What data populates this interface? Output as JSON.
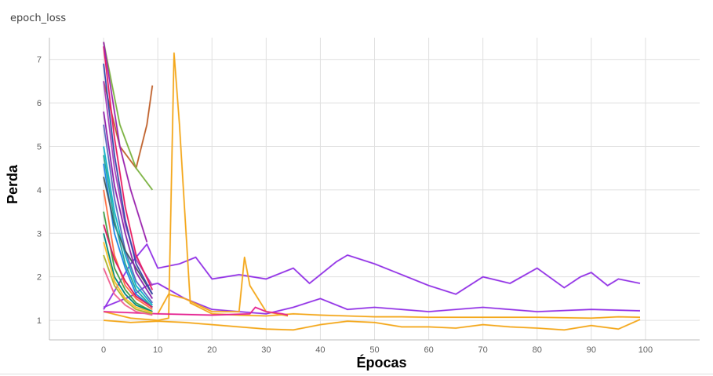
{
  "card": {
    "title": "epoch_loss"
  },
  "chart_data": {
    "type": "line",
    "xlabel": "Épocas",
    "ylabel": "Perda",
    "xlim": [
      -10,
      110
    ],
    "ylim": [
      0.55,
      7.5
    ],
    "x_ticks": [
      0,
      10,
      20,
      30,
      40,
      50,
      60,
      70,
      80,
      90,
      100
    ],
    "y_ticks": [
      1,
      2,
      3,
      4,
      5,
      6,
      7
    ],
    "grid": true,
    "series": [
      {
        "color": "#9334e6",
        "x": [
          0,
          5,
          8,
          10,
          14,
          17,
          20,
          25,
          30,
          35,
          38,
          43,
          45,
          50,
          55,
          60,
          65,
          70,
          75,
          80,
          85,
          88,
          90,
          93,
          95,
          99
        ],
        "y": [
          1.25,
          2.3,
          2.75,
          2.2,
          2.3,
          2.45,
          1.95,
          2.05,
          1.95,
          2.2,
          1.85,
          2.35,
          2.5,
          2.3,
          2.05,
          1.8,
          1.6,
          2.0,
          1.85,
          2.2,
          1.75,
          2.0,
          2.1,
          1.8,
          1.95,
          1.85
        ]
      },
      {
        "color": "#9334e6",
        "x": [
          0,
          5,
          8,
          10,
          15,
          20,
          25,
          30,
          35,
          40,
          45,
          50,
          60,
          70,
          80,
          90,
          99
        ],
        "y": [
          1.3,
          1.55,
          1.8,
          1.85,
          1.5,
          1.25,
          1.2,
          1.15,
          1.3,
          1.5,
          1.25,
          1.3,
          1.2,
          1.3,
          1.2,
          1.25,
          1.22
        ]
      },
      {
        "color": "#f4a81d",
        "x": [
          0,
          5,
          10,
          12,
          13,
          14,
          16,
          20,
          25,
          30,
          35,
          40,
          45,
          50,
          55,
          60,
          70,
          80,
          90,
          95,
          99
        ],
        "y": [
          1.2,
          1.05,
          1.0,
          1.05,
          7.15,
          5.5,
          1.4,
          1.15,
          1.12,
          1.1,
          1.15,
          1.12,
          1.1,
          1.08,
          1.08,
          1.07,
          1.07,
          1.07,
          1.05,
          1.08,
          1.07
        ]
      },
      {
        "color": "#f4a81d",
        "x": [
          0,
          5,
          10,
          15,
          20,
          25,
          30,
          35,
          40,
          45,
          50,
          55,
          60,
          65,
          70,
          75,
          80,
          85,
          90,
          95,
          99
        ],
        "y": [
          1.0,
          0.95,
          0.98,
          0.95,
          0.9,
          0.85,
          0.8,
          0.78,
          0.9,
          0.98,
          0.95,
          0.85,
          0.85,
          0.82,
          0.9,
          0.85,
          0.82,
          0.78,
          0.88,
          0.8,
          1.02
        ]
      },
      {
        "color": "#f4a81d",
        "x": [
          10,
          12,
          15,
          20,
          25,
          26,
          27,
          30,
          34
        ],
        "y": [
          1.15,
          1.6,
          1.5,
          1.2,
          1.2,
          2.45,
          1.8,
          1.2,
          1.1
        ]
      },
      {
        "color": "#e52592",
        "x": [
          0,
          10,
          20,
          27,
          28,
          30,
          33,
          34
        ],
        "y": [
          1.2,
          1.15,
          1.12,
          1.15,
          1.3,
          1.2,
          1.15,
          1.12
        ]
      },
      {
        "color": "#c0622d",
        "x": [
          0,
          3,
          6,
          8,
          9
        ],
        "y": [
          6.5,
          5.0,
          4.5,
          5.5,
          6.4
        ]
      },
      {
        "color": "#7cb342",
        "x": [
          0,
          3,
          6,
          9
        ],
        "y": [
          7.4,
          5.5,
          4.5,
          4.0
        ]
      },
      {
        "color": "#1e88e5",
        "x": [
          0,
          2,
          4,
          6,
          9
        ],
        "y": [
          4.6,
          3.0,
          2.2,
          1.6,
          1.3
        ]
      },
      {
        "color": "#12b5cb",
        "x": [
          0,
          2,
          4,
          6,
          9
        ],
        "y": [
          5.0,
          3.5,
          2.5,
          1.8,
          1.35
        ]
      },
      {
        "color": "#ff7043",
        "x": [
          0,
          2,
          4,
          6,
          9
        ],
        "y": [
          4.0,
          2.5,
          1.8,
          1.5,
          1.25
        ]
      },
      {
        "color": "#5c6bc0",
        "x": [
          0,
          2,
          4,
          6,
          9
        ],
        "y": [
          5.5,
          3.8,
          2.6,
          1.9,
          1.4
        ]
      },
      {
        "color": "#43a047",
        "x": [
          0,
          2,
          4,
          6,
          9
        ],
        "y": [
          3.5,
          2.2,
          1.7,
          1.4,
          1.2
        ]
      },
      {
        "color": "#ab47bc",
        "x": [
          0,
          2,
          4,
          6,
          9
        ],
        "y": [
          6.5,
          4.5,
          3.2,
          2.4,
          1.8
        ]
      },
      {
        "color": "#00897b",
        "x": [
          0,
          2,
          4,
          6,
          9
        ],
        "y": [
          3.0,
          2.0,
          1.6,
          1.35,
          1.2
        ]
      },
      {
        "color": "#fbc02d",
        "x": [
          0,
          2,
          4,
          6,
          9
        ],
        "y": [
          2.8,
          1.9,
          1.5,
          1.3,
          1.18
        ]
      },
      {
        "color": "#455a64",
        "x": [
          0,
          2,
          4,
          6,
          9
        ],
        "y": [
          4.3,
          3.2,
          2.6,
          2.2,
          1.6
        ]
      },
      {
        "color": "#e91e63",
        "x": [
          0,
          2,
          4,
          6,
          9
        ],
        "y": [
          7.3,
          5.2,
          3.6,
          2.5,
          1.7
        ]
      },
      {
        "color": "#8e24aa",
        "x": [
          0,
          2,
          4,
          6,
          9
        ],
        "y": [
          5.8,
          4.1,
          3.0,
          2.1,
          1.5
        ]
      },
      {
        "color": "#26a69a",
        "x": [
          0,
          2,
          4,
          6,
          9
        ],
        "y": [
          4.8,
          3.3,
          2.3,
          1.7,
          1.3
        ]
      },
      {
        "color": "#d81b60",
        "x": [
          0,
          2,
          4,
          6,
          9
        ],
        "y": [
          3.2,
          2.4,
          1.9,
          1.55,
          1.3
        ]
      },
      {
        "color": "#afb42b",
        "x": [
          0,
          2,
          4,
          6,
          9
        ],
        "y": [
          2.5,
          1.8,
          1.45,
          1.25,
          1.15
        ]
      },
      {
        "color": "#3949ab",
        "x": [
          0,
          2,
          4,
          6,
          9
        ],
        "y": [
          6.9,
          4.8,
          3.3,
          2.3,
          1.6
        ]
      },
      {
        "color": "#f06292",
        "x": [
          0,
          2,
          4,
          6,
          9
        ],
        "y": [
          2.2,
          1.6,
          1.35,
          1.2,
          1.12
        ]
      },
      {
        "color": "#9c27b0",
        "x": [
          0,
          3,
          5,
          7,
          8
        ],
        "y": [
          7.4,
          5.0,
          4.0,
          3.2,
          2.8
        ]
      }
    ]
  }
}
